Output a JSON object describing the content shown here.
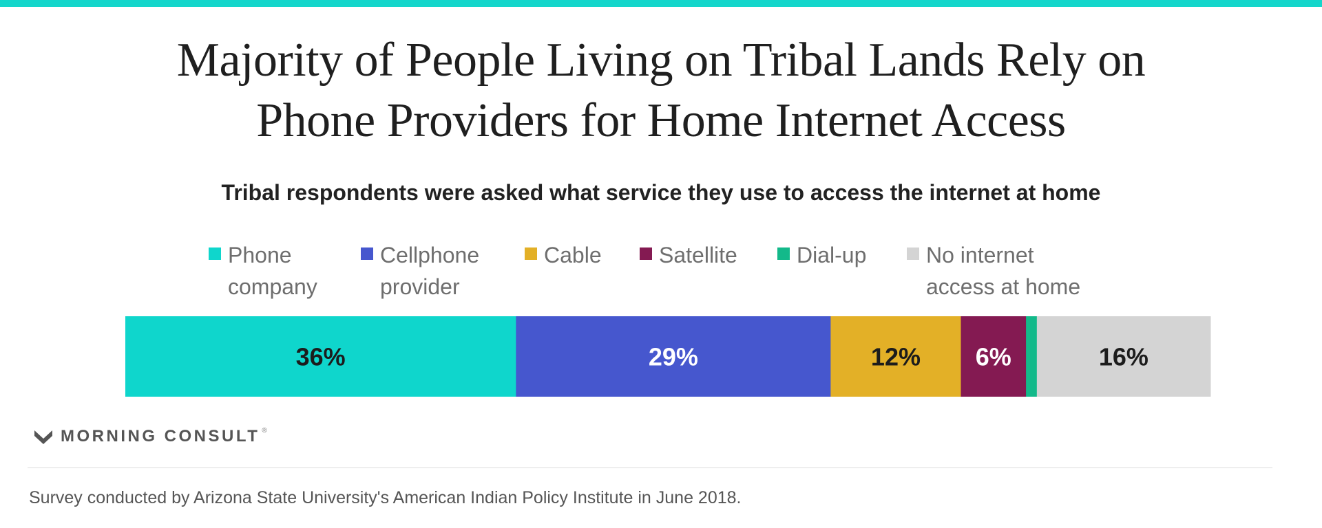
{
  "colors": {
    "top_bar": "#14d6cb",
    "phone_company": "#0fd6cc",
    "cellphone_provider": "#4657ce",
    "cable": "#e3b027",
    "satellite": "#841a52",
    "dial_up": "#13b98a",
    "no_internet": "#d4d4d4"
  },
  "header": {
    "title": "Majority of People Living on Tribal Lands Rely on\nPhone Providers for Home Internet Access",
    "subtitle": "Tribal respondents were asked what service they use to access the internet at home"
  },
  "chart_data": {
    "type": "bar",
    "orientation": "horizontal-stacked",
    "unit": "%",
    "xlim": [
      0,
      100
    ],
    "legend_placement": "top",
    "grid": false,
    "series": [
      {
        "name": "Phone company",
        "value": 36,
        "label": "36%",
        "color": "#0fd6cc",
        "label_color": "#1c1c1c"
      },
      {
        "name": "Cellphone provider",
        "value": 29,
        "label": "29%",
        "color": "#4657ce",
        "label_color": "#ffffff"
      },
      {
        "name": "Cable",
        "value": 12,
        "label": "12%",
        "color": "#e3b027",
        "label_color": "#1c1c1c"
      },
      {
        "name": "Satellite",
        "value": 6,
        "label": "6%",
        "color": "#841a52",
        "label_color": "#ffffff"
      },
      {
        "name": "Dial-up",
        "value": 1,
        "label": "",
        "color": "#13b98a",
        "label_color": "#1c1c1c"
      },
      {
        "name": "No internet access at home",
        "value": 16,
        "label": "16%",
        "color": "#d4d4d4",
        "label_color": "#1c1c1c"
      }
    ]
  },
  "legend": [
    {
      "label": "Phone\ncompany",
      "color": "#0fd6cc"
    },
    {
      "label": "Cellphone\nprovider",
      "color": "#4657ce"
    },
    {
      "label": "Cable",
      "color": "#e3b027"
    },
    {
      "label": "Satellite",
      "color": "#841a52"
    },
    {
      "label": "Dial-up",
      "color": "#13b98a"
    },
    {
      "label": "No internet\naccess at home",
      "color": "#d4d4d4"
    }
  ],
  "footer": {
    "logo_text": "MORNING CONSULT",
    "logo_mark": "®",
    "logo_icon": "morning-consult-logo-icon",
    "source": "Survey conducted by Arizona State University's American Indian Policy Institute in June 2018."
  }
}
